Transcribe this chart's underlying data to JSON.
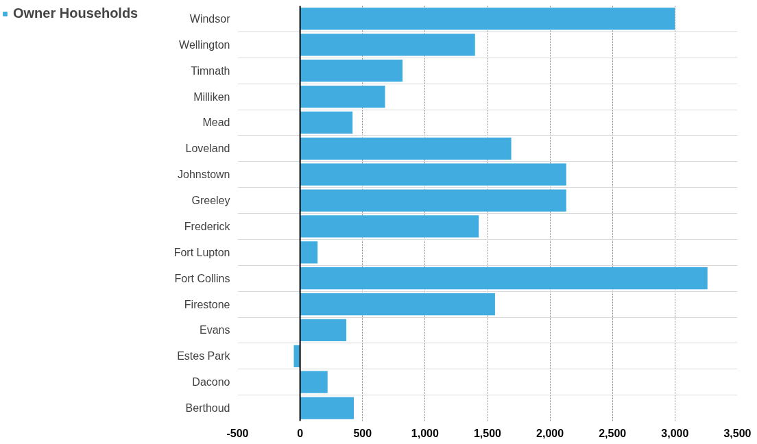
{
  "chart_data": {
    "type": "bar",
    "orientation": "horizontal",
    "categories": [
      "Windsor",
      "Wellington",
      "Timnath",
      "Milliken",
      "Mead",
      "Loveland",
      "Johnstown",
      "Greeley",
      "Frederick",
      "Fort Lupton",
      "Fort Collins",
      "Firestone",
      "Evans",
      "Estes Park",
      "Dacono",
      "Berthoud"
    ],
    "series": [
      {
        "name": "Owner Households",
        "color": "#41acdf",
        "values": [
          3000,
          1400,
          820,
          680,
          420,
          1690,
          2130,
          2130,
          1430,
          140,
          3260,
          1560,
          370,
          -50,
          220,
          430
        ]
      }
    ],
    "xlim": [
      -500,
      3500
    ],
    "xticks": [
      {
        "value": -500,
        "label": "-500"
      },
      0,
      {
        "value": 500,
        "label": "500"
      },
      {
        "value": 1000,
        "label": "1,000"
      },
      {
        "value": 1500,
        "label": "1,500"
      },
      {
        "value": 2000,
        "label": "2,000"
      },
      {
        "value": 2500,
        "label": "2,500"
      },
      {
        "value": 3000,
        "label": "3,000"
      },
      {
        "value": 3500,
        "label": "3,500"
      }
    ],
    "grid": true,
    "legend": "top left"
  }
}
